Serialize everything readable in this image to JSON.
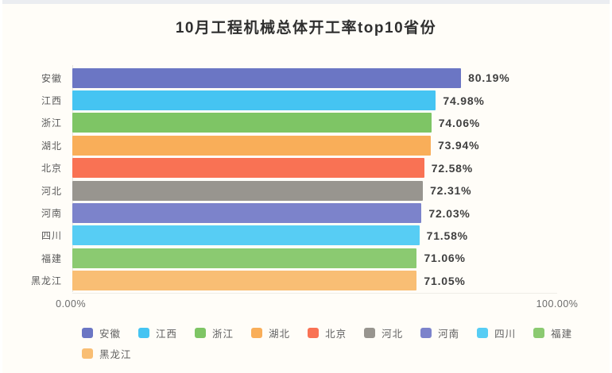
{
  "title": "10月工程机械总体开工率top10省份",
  "chart_data": {
    "type": "bar",
    "orientation": "horizontal",
    "title": "10月工程机械总体开工率top10省份",
    "categories": [
      "安徽",
      "江西",
      "浙江",
      "湖北",
      "北京",
      "河北",
      "河南",
      "四川",
      "福建",
      "黑龙江"
    ],
    "values": [
      80.19,
      74.98,
      74.06,
      73.94,
      72.58,
      72.31,
      72.03,
      71.58,
      71.06,
      71.05
    ],
    "value_labels": [
      "80.19%",
      "74.98%",
      "74.06%",
      "73.94%",
      "72.58%",
      "72.31%",
      "72.03%",
      "71.58%",
      "71.06%",
      "71.05%"
    ],
    "bar_colors": [
      "#6B76C4",
      "#45C4F2",
      "#7EC565",
      "#F9AE59",
      "#F97254",
      "#98958F",
      "#7C83CB",
      "#57CDF4",
      "#8BCA71",
      "#F9BE74"
    ],
    "xlim": [
      0,
      100
    ],
    "x_tick_labels": [
      "0.00%",
      "100.00%"
    ],
    "grid": false,
    "legend_position": "bottom",
    "legend": [
      {
        "label": "安徽",
        "color": "#6B76C4"
      },
      {
        "label": "江西",
        "color": "#45C4F2"
      },
      {
        "label": "浙江",
        "color": "#7EC565"
      },
      {
        "label": "湖北",
        "color": "#F9AE59"
      },
      {
        "label": "北京",
        "color": "#F97254"
      },
      {
        "label": "河北",
        "color": "#98958F"
      },
      {
        "label": "河南",
        "color": "#7C83CB"
      },
      {
        "label": "四川",
        "color": "#57CDF4"
      },
      {
        "label": "福建",
        "color": "#8BCA71"
      },
      {
        "label": "黑龙江",
        "color": "#F9BE74"
      }
    ]
  }
}
